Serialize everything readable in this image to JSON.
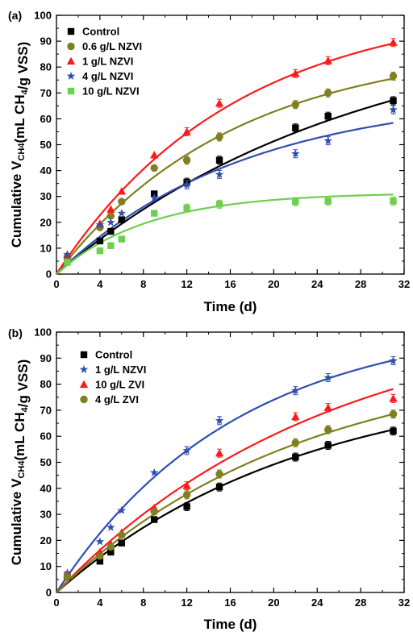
{
  "chart_data": [
    {
      "type": "scatter",
      "panel_label": "(a)",
      "xlabel": "Time (d)",
      "ylabel": {
        "prefix": "Cumulative V",
        "sub": "CH4",
        "mid": "(mL CH",
        "sub2": "4",
        "suffix": "/g VSS)"
      },
      "xlim": [
        0,
        32
      ],
      "ylim": [
        0,
        100
      ],
      "xticks": [
        0,
        4,
        8,
        12,
        16,
        20,
        24,
        28,
        32
      ],
      "yticks": [
        0,
        10,
        20,
        30,
        40,
        50,
        60,
        70,
        80,
        90,
        100
      ],
      "legend_position": "top-left",
      "series": [
        {
          "name": "Control",
          "marker": "square",
          "color": "#000000",
          "x": [
            1,
            4,
            5,
            6,
            9,
            12,
            15,
            22,
            25,
            31
          ],
          "y": [
            6,
            12.8,
            16.5,
            21,
            31,
            35.5,
            44,
            56.5,
            61,
            67
          ],
          "fit": {
            "ymax": 100,
            "k": 0.036
          }
        },
        {
          "name": "0.6 g/L NZVI",
          "marker": "circle",
          "color": "#7f7f20",
          "x": [
            1,
            4,
            5,
            6,
            9,
            12,
            15,
            22,
            25,
            31
          ],
          "y": [
            6.5,
            18,
            22.5,
            28,
            41,
            44,
            53,
            65.5,
            70,
            76.5
          ],
          "fit": {
            "ymax": 89,
            "k": 0.061
          }
        },
        {
          "name": "1 g/L NZVI",
          "marker": "triangle",
          "color": "#ff1a1a",
          "x": [
            1,
            4,
            5,
            6,
            9,
            12,
            15,
            22,
            25,
            31
          ],
          "y": [
            7.5,
            19.5,
            25,
            32,
            46,
            55,
            66,
            77.5,
            82.5,
            89.5
          ],
          "fit": {
            "ymax": 105,
            "k": 0.061
          }
        },
        {
          "name": "4 g/L NZVI",
          "marker": "star",
          "color": "#2f4fb0",
          "x": [
            1,
            4,
            5,
            6,
            9,
            12,
            15,
            22,
            25,
            31
          ],
          "y": [
            7.5,
            19,
            20,
            23.5,
            29.5,
            34.5,
            38.5,
            46.5,
            51.5,
            63.5
          ],
          "fit": {
            "ymax": 70,
            "k": 0.058
          }
        },
        {
          "name": "10 g/L NZVI",
          "marker": "square",
          "color": "#6fcf4f",
          "x": [
            1,
            4,
            5,
            6,
            9,
            12,
            15,
            22,
            25,
            31
          ],
          "y": [
            4.5,
            9,
            11,
            13.5,
            23.5,
            25.5,
            27,
            28,
            28.2,
            28.2
          ],
          "fit": {
            "ymax": 31.5,
            "k": 0.12
          }
        }
      ]
    },
    {
      "type": "scatter",
      "panel_label": "(b)",
      "xlabel": "Time (d)",
      "ylabel": {
        "prefix": "Cumulative V",
        "sub": "CH4",
        "mid": "(mL CH",
        "sub2": "4",
        "suffix": "/g VSS)"
      },
      "xlim": [
        0,
        32
      ],
      "ylim": [
        0,
        100
      ],
      "xticks": [
        0,
        4,
        8,
        12,
        16,
        20,
        24,
        28,
        32
      ],
      "yticks": [
        0,
        10,
        20,
        30,
        40,
        50,
        60,
        70,
        80,
        90,
        100
      ],
      "legend_position": "top-left",
      "series": [
        {
          "name": "Control",
          "marker": "square",
          "color": "#000000",
          "x": [
            1,
            4,
            5,
            6,
            9,
            12,
            15,
            22,
            25,
            31
          ],
          "y": [
            6,
            12,
            15.5,
            19,
            28,
            33,
            40.5,
            52,
            56.5,
            62
          ],
          "fit": {
            "ymax": 84,
            "k": 0.044
          }
        },
        {
          "name": "1 g/L NZVI",
          "marker": "star",
          "color": "#2f4fb0",
          "x": [
            1,
            4,
            5,
            6,
            9,
            12,
            15,
            22,
            25,
            31
          ],
          "y": [
            7.5,
            19.5,
            25,
            31.5,
            46,
            54.5,
            66,
            77.5,
            82.5,
            89
          ],
          "fit": {
            "ymax": 105,
            "k": 0.061
          }
        },
        {
          "name": "10 g/L ZVI",
          "marker": "triangle",
          "color": "#ff1a1a",
          "x": [
            1,
            4,
            5,
            6,
            9,
            12,
            15,
            22,
            25,
            31
          ],
          "y": [
            7,
            15.5,
            18.5,
            23,
            32.5,
            41,
            53.5,
            67.5,
            71,
            74.5
          ],
          "fit": {
            "ymax": 110,
            "k": 0.04
          }
        },
        {
          "name": "4 g/L ZVI",
          "marker": "circle",
          "color": "#7f7f20",
          "x": [
            1,
            4,
            5,
            6,
            9,
            12,
            15,
            22,
            25,
            31
          ],
          "y": [
            6,
            14,
            17.5,
            22,
            31,
            37.5,
            45.5,
            57.5,
            62.5,
            68.5
          ],
          "fit": {
            "ymax": 92,
            "k": 0.044
          }
        }
      ]
    }
  ]
}
